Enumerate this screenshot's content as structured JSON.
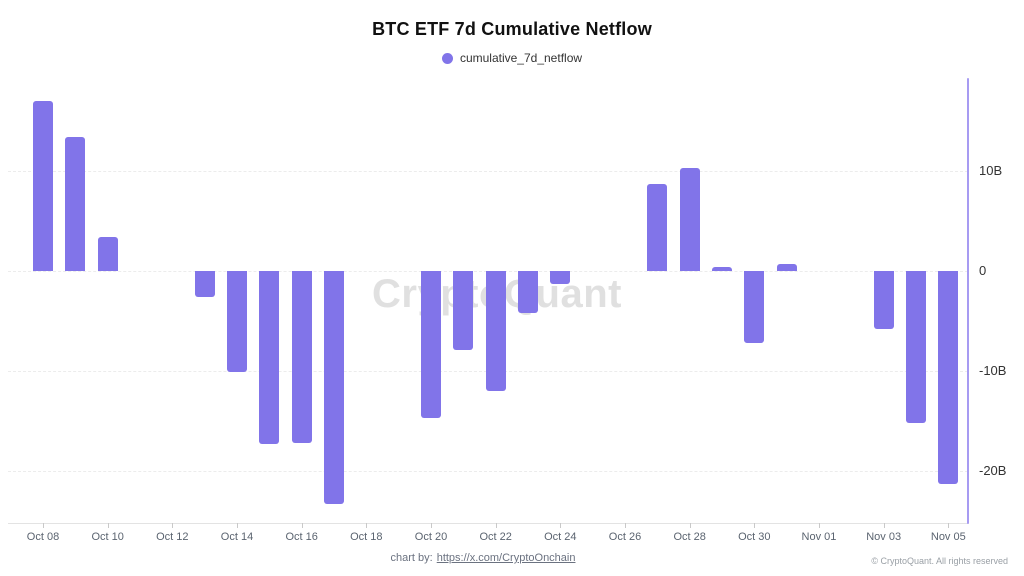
{
  "watermark": {
    "text": "CryptoQuant"
  },
  "footer": {
    "credit_prefix": "chart by:",
    "credit_link": "https://x.com/CryptoOnchain",
    "copyright": "© CryptoQuant. All rights reserved"
  },
  "chart_data": {
    "type": "bar",
    "title": "BTC ETF 7d Cumulative Netflow",
    "series_name": "cumulative_7d_netflow",
    "bar_color": "#8174e9",
    "axis_color": "#a79bf2",
    "legend_position": "top-center",
    "grid": "horizontal-dashed",
    "y_axis_side": "right",
    "ylim": [
      -25.3,
      19.6
    ],
    "y_ticks": [
      {
        "label": "10B",
        "value": 10
      },
      {
        "label": "0",
        "value": 0
      },
      {
        "label": "-10B",
        "value": -10
      },
      {
        "label": "-20B",
        "value": -20
      }
    ],
    "x_ticks": [
      "Oct 08",
      "Oct 10",
      "Oct 12",
      "Oct 14",
      "Oct 16",
      "Oct 18",
      "Oct 20",
      "Oct 22",
      "Oct 24",
      "Oct 26",
      "Oct 28",
      "Oct 30",
      "Nov 01",
      "Nov 03",
      "Nov 05"
    ],
    "points": [
      {
        "date": "Oct 08",
        "value": 17.0
      },
      {
        "date": "Oct 09",
        "value": 13.4
      },
      {
        "date": "Oct 10",
        "value": 3.4
      },
      {
        "date": "Oct 13",
        "value": -2.6
      },
      {
        "date": "Oct 14",
        "value": -10.1
      },
      {
        "date": "Oct 15",
        "value": -17.3
      },
      {
        "date": "Oct 16",
        "value": -17.2
      },
      {
        "date": "Oct 17",
        "value": -23.3
      },
      {
        "date": "Oct 20",
        "value": -14.7
      },
      {
        "date": "Oct 21",
        "value": -7.9
      },
      {
        "date": "Oct 22",
        "value": -12.0
      },
      {
        "date": "Oct 23",
        "value": -4.2
      },
      {
        "date": "Oct 24",
        "value": -1.3
      },
      {
        "date": "Oct 27",
        "value": 8.7
      },
      {
        "date": "Oct 28",
        "value": 10.3
      },
      {
        "date": "Oct 29",
        "value": 0.4
      },
      {
        "date": "Oct 30",
        "value": -7.2
      },
      {
        "date": "Oct 31",
        "value": 0.7
      },
      {
        "date": "Nov 03",
        "value": -5.8
      },
      {
        "date": "Nov 04",
        "value": -15.2
      },
      {
        "date": "Nov 05",
        "value": -21.3
      }
    ]
  }
}
